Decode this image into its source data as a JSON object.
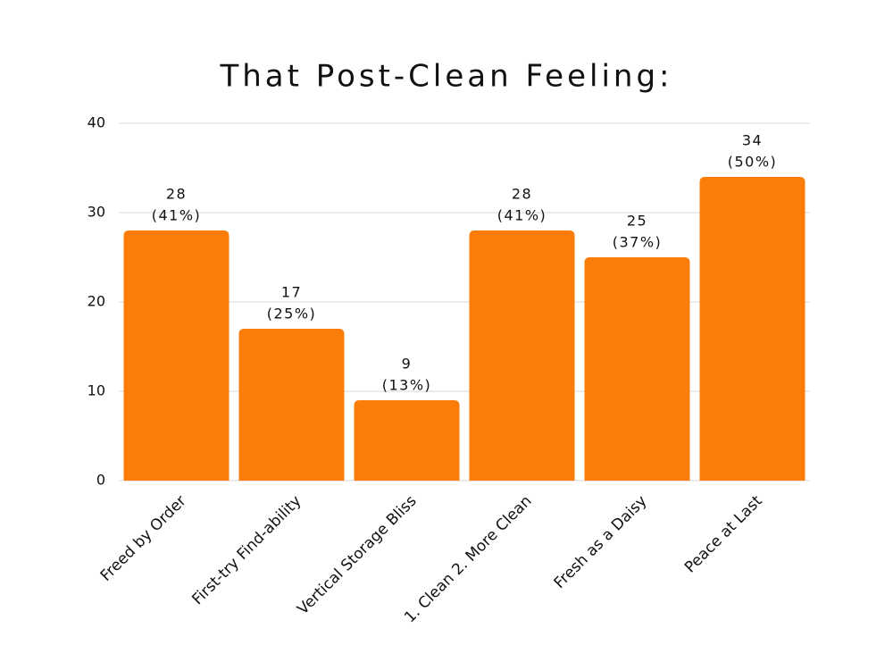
{
  "chart_data": {
    "type": "bar",
    "title": "That Post-Clean Feeling:",
    "categories": [
      "Freed by Order",
      "First-try Find-ability",
      "Vertical Storage Bliss",
      "1. Clean 2. More Clean",
      "Fresh as a Daisy",
      "Peace at Last"
    ],
    "values": [
      28,
      17,
      9,
      28,
      25,
      34
    ],
    "value_labels": [
      [
        "28",
        "(41%)"
      ],
      [
        "17",
        "(25%)"
      ],
      [
        "9",
        "(13%)"
      ],
      [
        "28",
        "(41%)"
      ],
      [
        "25",
        "(37%)"
      ],
      [
        "34",
        "(50%)"
      ]
    ],
    "color": "#fb7c08",
    "ylim": [
      0,
      40
    ],
    "yticks": [
      0,
      10,
      20,
      30,
      40
    ],
    "grid": true
  }
}
